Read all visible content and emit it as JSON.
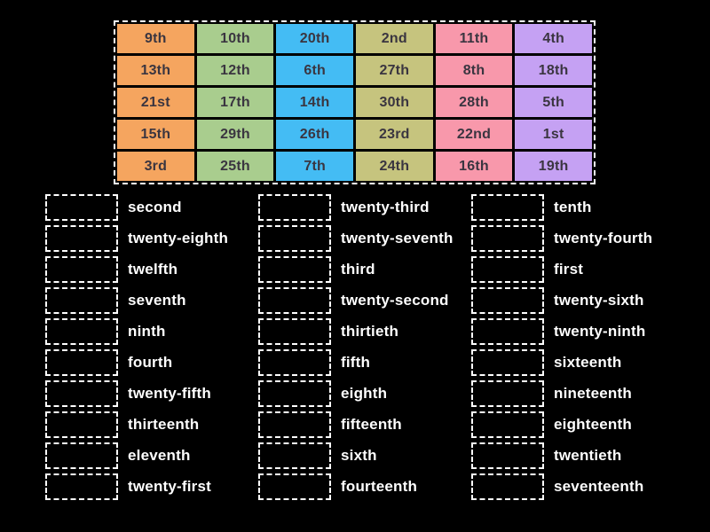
{
  "game": {
    "background_color": "#000000",
    "tile_grid": {
      "rows": [
        [
          "9th",
          "10th",
          "20th",
          "2nd",
          "11th",
          "4th"
        ],
        [
          "13th",
          "12th",
          "6th",
          "27th",
          "8th",
          "18th"
        ],
        [
          "21st",
          "17th",
          "14th",
          "30th",
          "28th",
          "5th"
        ],
        [
          "15th",
          "29th",
          "26th",
          "23rd",
          "22nd",
          "1st"
        ],
        [
          "3rd",
          "25th",
          "7th",
          "24th",
          "16th",
          "19th"
        ]
      ],
      "column_colors": [
        "#f5a55f",
        "#a9cd8e",
        "#44bcf4",
        "#c6c47e",
        "#f898ab",
        "#c5a1f3"
      ],
      "tile_text_color": "#3a3540",
      "border_color": "#ffffff"
    },
    "word_columns": [
      [
        "second",
        "twenty-eighth",
        "twelfth",
        "seventh",
        "ninth",
        "fourth",
        "twenty-fifth",
        "thirteenth",
        "eleventh",
        "twenty-first"
      ],
      [
        "twenty-third",
        "twenty-seventh",
        "third",
        "twenty-second",
        "thirtieth",
        "fifth",
        "eighth",
        "fifteenth",
        "sixth",
        "fourteenth"
      ],
      [
        "tenth",
        "twenty-fourth",
        "first",
        "twenty-sixth",
        "twenty-ninth",
        "sixteenth",
        "nineteenth",
        "eighteenth",
        "twentieth",
        "seventeenth"
      ]
    ]
  }
}
